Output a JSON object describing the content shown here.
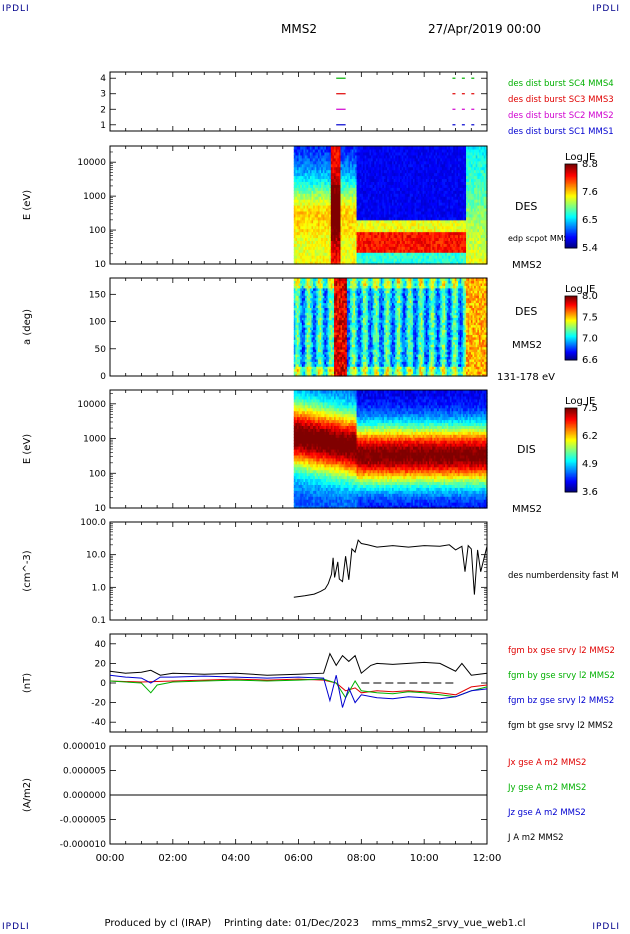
{
  "header": {
    "brand": "IPDLI",
    "spacecraft": "MMS2",
    "date": "27/Apr/2019 00:00"
  },
  "footer": {
    "producer": "Produced by cl (IRAP)",
    "printing_date": "Printing date: 01/Dec/2023",
    "script": "mms_mms2_srvy_vue_web1.cl"
  },
  "colors": {
    "red": "#e00000",
    "green": "#00b000",
    "blue": "#0000d0",
    "magenta": "#d000d0",
    "black": "#000000"
  },
  "chart_data": [
    {
      "id": "burst",
      "type": "line",
      "ylim": [
        0.6,
        4.4
      ],
      "yticks": [
        1,
        2,
        3,
        4
      ],
      "series": [
        {
          "name": "des dist burst SC1 MMS1",
          "color": "#0000d0",
          "y": 1,
          "segments": [
            [
              7.2,
              7.5
            ],
            [
              10.9,
              11.0
            ],
            [
              11.2,
              11.3
            ],
            [
              11.5,
              11.6
            ]
          ]
        },
        {
          "name": "des dist burst SC2 MMS2",
          "color": "#d000d0",
          "y": 2,
          "segments": [
            [
              7.2,
              7.5
            ],
            [
              10.9,
              11.0
            ],
            [
              11.2,
              11.3
            ],
            [
              11.5,
              11.6
            ]
          ]
        },
        {
          "name": "des dist burst SC3 MMS3",
          "color": "#e00000",
          "y": 3,
          "segments": [
            [
              7.2,
              7.5
            ],
            [
              10.9,
              11.0
            ],
            [
              11.2,
              11.3
            ],
            [
              11.5,
              11.6
            ]
          ]
        },
        {
          "name": "des dist burst SC4 MMS4",
          "color": "#00b000",
          "y": 4,
          "segments": [
            [
              7.2,
              7.5
            ],
            [
              10.9,
              11.0
            ],
            [
              11.2,
              11.3
            ],
            [
              11.5,
              11.6
            ]
          ]
        }
      ]
    },
    {
      "id": "des_energy",
      "type": "heatmap",
      "ylabel": "E (eV)",
      "yscale": "log",
      "ylim": [
        10,
        30000
      ],
      "yticks": [
        "10",
        "100",
        "1000",
        "10000"
      ],
      "data_start_hour": 5.85,
      "right_labels": [
        "DES",
        "edp scpot MMS2",
        "MMS2"
      ],
      "colorbar": {
        "title": "Log JE",
        "ticks": [
          "8.8",
          "7.6",
          "6.5",
          "5.4"
        ]
      }
    },
    {
      "id": "des_pitch",
      "type": "heatmap",
      "ylabel": "a (deg)",
      "ylim": [
        0,
        180
      ],
      "yticks": [
        "0",
        "50",
        "100",
        "150"
      ],
      "data_start_hour": 5.85,
      "right_labels": [
        "DES",
        "MMS2",
        "131-178 eV"
      ],
      "colorbar": {
        "title": "Log JE",
        "ticks": [
          "8.0",
          "7.5",
          "7.0",
          "6.6"
        ]
      }
    },
    {
      "id": "dis_energy",
      "type": "heatmap",
      "ylabel": "E (eV)",
      "yscale": "log",
      "ylim": [
        10,
        25000
      ],
      "yticks": [
        "10",
        "100",
        "1000",
        "10000"
      ],
      "data_start_hour": 5.85,
      "right_labels": [
        "DIS",
        "MMS2"
      ],
      "colorbar": {
        "title": "Log JE",
        "ticks": [
          "7.5",
          "6.2",
          "4.9",
          "3.6"
        ]
      }
    },
    {
      "id": "density",
      "type": "line",
      "ylabel": "(cm^-3)",
      "yscale": "log",
      "ylim": [
        0.1,
        100
      ],
      "yticks": [
        "0.1",
        "1.0",
        "10.0",
        "100.0"
      ],
      "series": [
        {
          "name": "des numberdensity fast M",
          "color": "#000000",
          "x": [
            5.85,
            6.2,
            6.5,
            6.7,
            6.85,
            6.95,
            7.05,
            7.1,
            7.15,
            7.25,
            7.3,
            7.4,
            7.5,
            7.6,
            7.7,
            7.8,
            7.9,
            8.0,
            8.2,
            8.5,
            9.0,
            9.5,
            10.0,
            10.5,
            10.8,
            11.0,
            11.2,
            11.3,
            11.4,
            11.5,
            11.6,
            11.7,
            11.8,
            12.0
          ],
          "y": [
            0.5,
            0.55,
            0.62,
            0.75,
            0.9,
            1.3,
            2.5,
            8.0,
            2.0,
            6.0,
            1.8,
            1.5,
            9.0,
            1.7,
            15.0,
            12.0,
            28.0,
            22.0,
            20.0,
            17.0,
            19.0,
            17.0,
            19.0,
            18.0,
            20.0,
            14.0,
            18.0,
            3.0,
            19.0,
            15.0,
            0.6,
            14.0,
            3.0,
            18.0
          ]
        }
      ]
    },
    {
      "id": "magnetic",
      "type": "line",
      "ylabel": "(nT)",
      "ylim": [
        -50,
        50
      ],
      "yticks": [
        "-40",
        "-20",
        "0",
        "20",
        "40"
      ],
      "series": [
        {
          "name": "fgm bx gse srvy l2 MMS2",
          "color": "#e00000",
          "x": [
            0,
            1,
            2,
            3,
            4,
            5,
            6,
            6.8,
            7.2,
            7.5,
            7.8,
            8.0,
            8.5,
            9.0,
            9.5,
            10.0,
            10.5,
            11.0,
            11.5,
            12.0
          ],
          "y": [
            2,
            1,
            2,
            3,
            4,
            3,
            4,
            3,
            0,
            -8,
            -5,
            -10,
            -8,
            -9,
            -8,
            -9,
            -10,
            -12,
            -4,
            -2
          ]
        },
        {
          "name": "fgm by gse srvy l2 MMS2",
          "color": "#00b000",
          "x": [
            0,
            1,
            1.3,
            1.5,
            2,
            3,
            4,
            5,
            6,
            6.8,
            7.2,
            7.5,
            7.8,
            8.0,
            8.5,
            9.0,
            9.5,
            10.0,
            10.5,
            11.0,
            11.5,
            12.0
          ],
          "y": [
            2,
            0,
            -10,
            -2,
            1,
            2,
            3,
            2,
            3,
            4,
            0,
            -15,
            2,
            -8,
            -10,
            -11,
            -9,
            -10,
            -12,
            -14,
            -8,
            -4
          ]
        },
        {
          "name": "fgm bz gse srvy l2 MMS2",
          "color": "#0000d0",
          "x": [
            0,
            0.5,
            1,
            1.3,
            1.6,
            2,
            3,
            4,
            5,
            6,
            6.8,
            7.0,
            7.2,
            7.4,
            7.6,
            7.8,
            8.0,
            8.5,
            9.0,
            9.5,
            10.0,
            10.5,
            11.0,
            11.5,
            12.0
          ],
          "y": [
            8,
            6,
            5,
            0,
            6,
            6,
            7,
            6,
            5,
            6,
            5,
            -18,
            8,
            -25,
            -5,
            -20,
            -12,
            -15,
            -16,
            -14,
            -15,
            -16,
            -14,
            -8,
            -6
          ]
        },
        {
          "name": "fgm bt gse srvy l2 MMS2",
          "color": "#000000",
          "x": [
            0,
            0.5,
            1,
            1.3,
            1.6,
            2,
            3,
            4,
            5,
            6,
            6.8,
            7.0,
            7.2,
            7.4,
            7.6,
            7.8,
            8.0,
            8.3,
            8.5,
            9.0,
            9.5,
            10.0,
            10.5,
            11.0,
            11.2,
            11.5,
            12.0
          ],
          "y": [
            12,
            10,
            11,
            13,
            8,
            10,
            9,
            10,
            8,
            9,
            10,
            30,
            18,
            28,
            22,
            28,
            10,
            18,
            20,
            19,
            20,
            21,
            20,
            12,
            20,
            8,
            10
          ]
        }
      ],
      "reference": {
        "value": 0,
        "x": [
          8.0,
          11.0
        ]
      }
    },
    {
      "id": "current",
      "type": "line",
      "ylabel": "(A/m2)",
      "ylim": [
        -1e-05,
        1e-05
      ],
      "yticks": [
        "-0.000010",
        "-0.000005",
        "0.000000",
        "0.000005",
        "0.000010"
      ],
      "series": [
        {
          "name": "Jx gse A m2 MMS2",
          "color": "#e00000",
          "x": [
            0,
            12
          ],
          "y": [
            0,
            0
          ]
        },
        {
          "name": "Jy gse A m2 MMS2",
          "color": "#00b000",
          "x": [
            0,
            12
          ],
          "y": [
            0,
            0
          ]
        },
        {
          "name": "Jz gse A m2 MMS2",
          "color": "#0000d0",
          "x": [
            0,
            12
          ],
          "y": [
            0,
            0
          ]
        },
        {
          "name": "J A m2 MMS2",
          "color": "#000000",
          "x": [
            0,
            12
          ],
          "y": [
            0,
            0
          ]
        }
      ],
      "xticks": [
        "00:00",
        "02:00",
        "04:00",
        "06:00",
        "08:00",
        "10:00",
        "12:00"
      ],
      "xlim": [
        0,
        12
      ]
    }
  ]
}
